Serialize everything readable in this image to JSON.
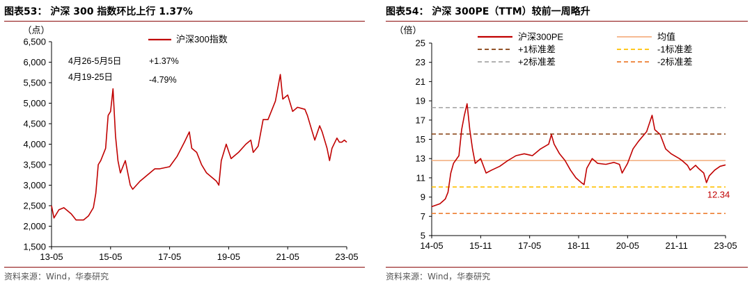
{
  "left": {
    "title": "图表53： 沪深 300 指数环比上行 1.37%",
    "source": "资料来源：Wind，华泰研究",
    "annotation": {
      "row1_label": "4月26-5月5日",
      "row1_value": "+1.37%",
      "row2_label": "4月19-25日",
      "row2_value": "-4.79%"
    },
    "colors": {
      "series": "#c00000",
      "rule": "#8b0a0a"
    }
  },
  "right": {
    "title": "图表54： 沪深 300PE（TTM）较前一周略升",
    "source": "资料来源：Wind，华泰研究",
    "end_value_label": "12.34",
    "colors": {
      "series": "#c00000",
      "mean": "#f4b183",
      "sd1": "#843c0c",
      "sd2": "#a6a6a6",
      "sd1_neg": "#ffc000",
      "sd2_neg": "#ed7d31",
      "rule": "#8b0a0a"
    }
  },
  "chart_data": [
    {
      "type": "line",
      "title": "沪深 300 指数环比上行 1.37%",
      "ylabel": "（点）",
      "ylim": [
        1500,
        6500
      ],
      "yticks": [
        "1,500",
        "2,000",
        "2,500",
        "3,000",
        "3,500",
        "4,000",
        "4,500",
        "5,000",
        "5,500",
        "6,000",
        "6,500"
      ],
      "xticks": [
        "13-05",
        "15-05",
        "17-05",
        "19-05",
        "21-05",
        "23-05"
      ],
      "xlim": [
        "2013-05",
        "2023-05"
      ],
      "series": [
        {
          "name": "沪深300指数",
          "x": [
            "2013-05",
            "2013-06",
            "2013-08",
            "2013-10",
            "2014-01",
            "2014-03",
            "2014-06",
            "2014-08",
            "2014-10",
            "2014-11",
            "2014-12",
            "2015-01",
            "2015-03",
            "2015-04",
            "2015-05",
            "2015-06",
            "2015-07",
            "2015-08",
            "2015-09",
            "2015-11",
            "2016-01",
            "2016-02",
            "2016-05",
            "2016-08",
            "2016-11",
            "2017-01",
            "2017-05",
            "2017-08",
            "2017-11",
            "2018-01",
            "2018-02",
            "2018-04",
            "2018-06",
            "2018-08",
            "2018-10",
            "2018-12",
            "2019-01",
            "2019-02",
            "2019-04",
            "2019-06",
            "2019-09",
            "2019-12",
            "2020-02",
            "2020-03",
            "2020-05",
            "2020-07",
            "2020-09",
            "2020-12",
            "2021-02",
            "2021-03",
            "2021-05",
            "2021-07",
            "2021-09",
            "2021-12",
            "2022-01",
            "2022-03",
            "2022-04",
            "2022-06",
            "2022-07",
            "2022-09",
            "2022-10",
            "2022-11",
            "2023-01",
            "2023-02",
            "2023-03",
            "2023-04",
            "2023-05"
          ],
          "values": [
            2500,
            2200,
            2400,
            2450,
            2300,
            2150,
            2150,
            2250,
            2450,
            2800,
            3500,
            3600,
            3900,
            4700,
            4800,
            5350,
            4200,
            3600,
            3300,
            3600,
            3000,
            2900,
            3100,
            3250,
            3400,
            3400,
            3450,
            3700,
            4050,
            4300,
            3900,
            3800,
            3500,
            3300,
            3200,
            3100,
            3000,
            3600,
            4000,
            3650,
            3800,
            4000,
            4100,
            3800,
            3950,
            4600,
            4600,
            5050,
            5700,
            5100,
            5200,
            4800,
            4900,
            4850,
            4700,
            4300,
            4100,
            4450,
            4300,
            3900,
            3600,
            3900,
            4150,
            4050,
            4050,
            4100,
            4050
          ]
        }
      ]
    },
    {
      "type": "line",
      "title": "沪深 300PE（TTM）较前一周略升",
      "ylabel": "（倍）",
      "ylim": [
        5,
        25
      ],
      "yticks": [
        "5",
        "7",
        "9",
        "11",
        "13",
        "15",
        "17",
        "19",
        "21",
        "23",
        "25"
      ],
      "xticks": [
        "14-05",
        "15-11",
        "17-05",
        "18-11",
        "20-05",
        "21-11",
        "23-05"
      ],
      "xlim": [
        "2014-05",
        "2023-05"
      ],
      "series": [
        {
          "name": "沪深300PE",
          "x": [
            "2014-05",
            "2014-08",
            "2014-10",
            "2014-11",
            "2014-12",
            "2015-01",
            "2015-03",
            "2015-04",
            "2015-05",
            "2015-06",
            "2015-07",
            "2015-08",
            "2015-09",
            "2015-11",
            "2016-01",
            "2016-03",
            "2016-06",
            "2016-09",
            "2016-12",
            "2017-03",
            "2017-06",
            "2017-09",
            "2017-12",
            "2018-01",
            "2018-02",
            "2018-04",
            "2018-06",
            "2018-08",
            "2018-10",
            "2018-12",
            "2019-01",
            "2019-02",
            "2019-04",
            "2019-06",
            "2019-09",
            "2019-12",
            "2020-02",
            "2020-03",
            "2020-05",
            "2020-07",
            "2020-09",
            "2020-12",
            "2021-02",
            "2021-03",
            "2021-05",
            "2021-07",
            "2021-09",
            "2021-12",
            "2022-01",
            "2022-03",
            "2022-04",
            "2022-06",
            "2022-07",
            "2022-09",
            "2022-10",
            "2022-11",
            "2023-01",
            "2023-03",
            "2023-05"
          ],
          "values": [
            8.0,
            8.3,
            8.8,
            9.5,
            11.5,
            12.5,
            13.3,
            16.0,
            17.5,
            18.7,
            16.0,
            14.0,
            12.5,
            13.0,
            11.5,
            11.8,
            12.2,
            12.8,
            13.3,
            13.5,
            13.3,
            14.0,
            14.5,
            15.5,
            14.5,
            13.5,
            12.8,
            11.8,
            11.0,
            10.5,
            10.3,
            12.0,
            13.0,
            12.5,
            12.4,
            12.6,
            12.4,
            11.5,
            12.5,
            14.0,
            14.8,
            15.8,
            17.5,
            16.0,
            15.5,
            14.0,
            13.5,
            13.0,
            12.8,
            12.3,
            11.8,
            12.3,
            12.0,
            11.5,
            10.5,
            11.2,
            11.8,
            12.2,
            12.34
          ]
        },
        {
          "name": "均值",
          "values": [
            12.8
          ]
        },
        {
          "name": "+1标准差",
          "values": [
            15.55
          ]
        },
        {
          "name": "-1标准差",
          "values": [
            10.05
          ]
        },
        {
          "name": "+2标准差",
          "values": [
            18.3
          ]
        },
        {
          "name": "-2标准差",
          "values": [
            7.3
          ]
        }
      ]
    }
  ]
}
